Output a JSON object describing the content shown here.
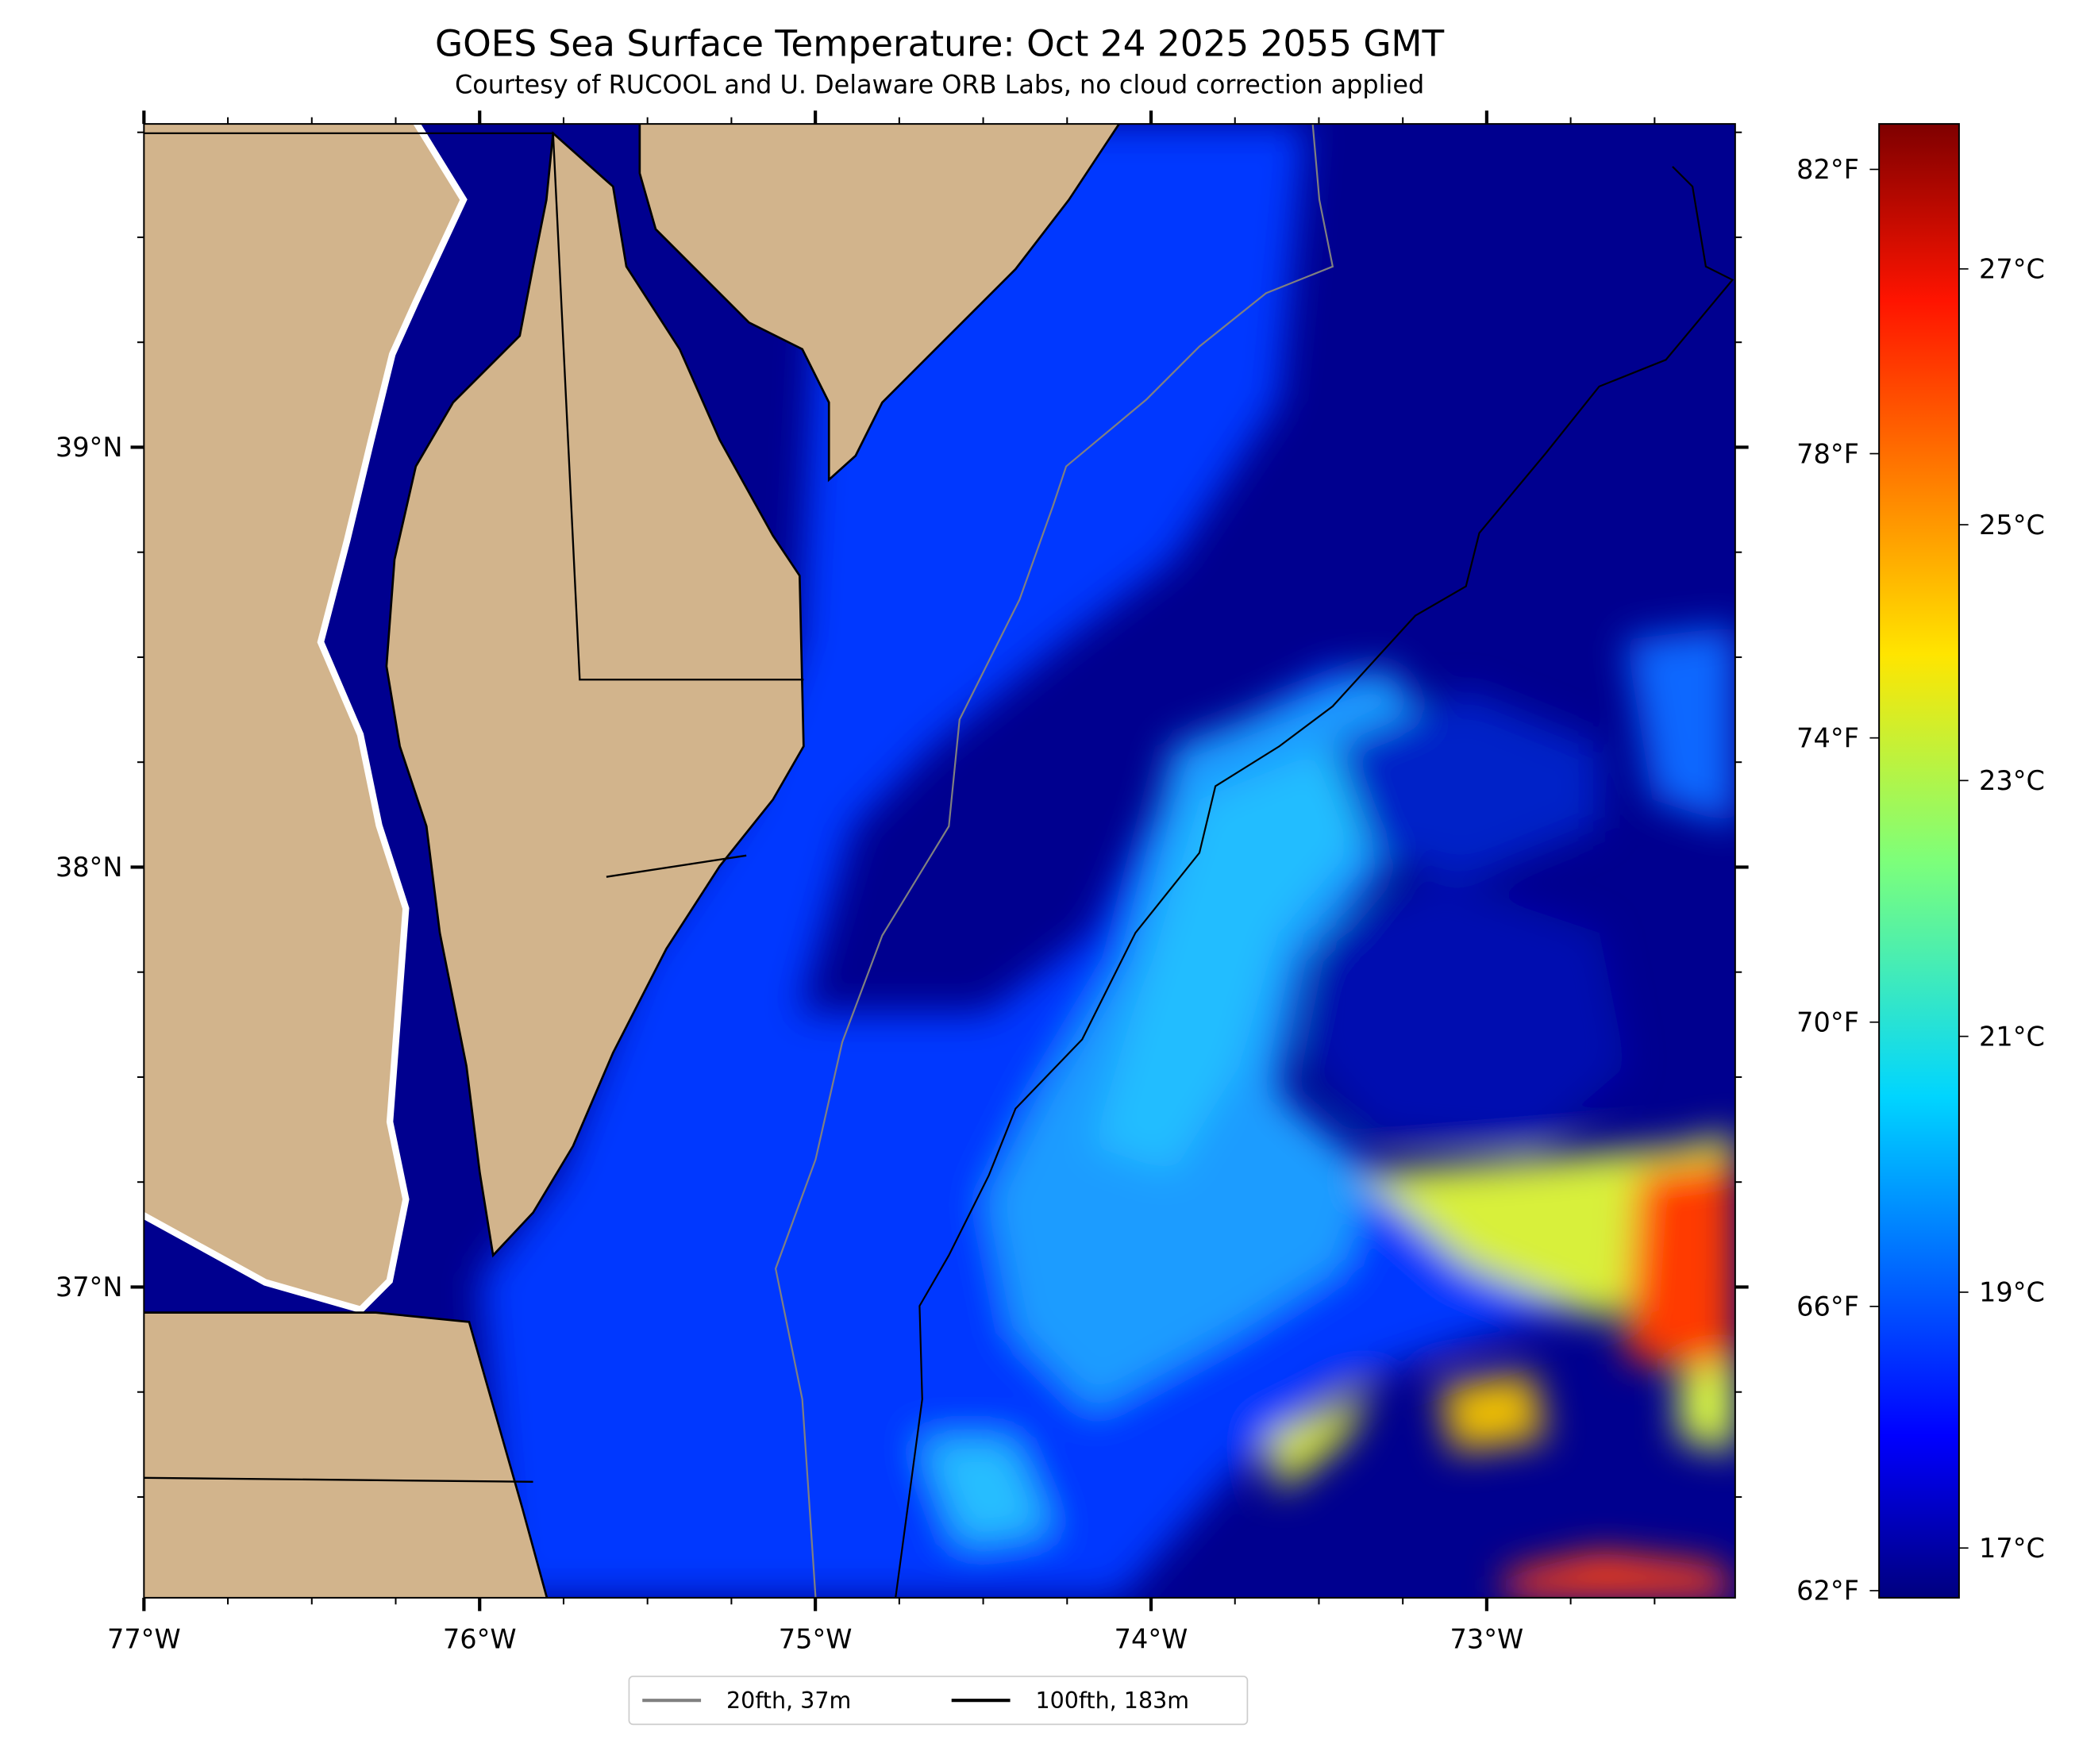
{
  "chart_data": {
    "type": "heatmap",
    "title": "GOES Sea Surface Temperature: Oct 24 2025 2055 GMT",
    "subtitle": "Courtesy of RUCOOL and U. Delaware ORB Labs, no cloud correction applied",
    "xlim": [
      -77.0,
      -72.26
    ],
    "ylim": [
      36.26,
      39.77
    ],
    "x_ticks": [
      {
        "value": -77,
        "label": "77°W"
      },
      {
        "value": -76,
        "label": "76°W"
      },
      {
        "value": -75,
        "label": "75°W"
      },
      {
        "value": -74,
        "label": "74°W"
      },
      {
        "value": -73,
        "label": "73°W"
      }
    ],
    "y_ticks": [
      {
        "value": 39,
        "label": "39°N"
      },
      {
        "value": 38,
        "label": "38°N"
      },
      {
        "value": 37,
        "label": "37°N"
      }
    ],
    "colorbar": {
      "colormap": "jet",
      "range_f": [
        61.9,
        82.64
      ],
      "f_ticks": [
        {
          "value": 62,
          "label": "62°F"
        },
        {
          "value": 66,
          "label": "66°F"
        },
        {
          "value": 70,
          "label": "70°F"
        },
        {
          "value": 74,
          "label": "74°F"
        },
        {
          "value": 78,
          "label": "78°F"
        },
        {
          "value": 82,
          "label": "82°F"
        }
      ],
      "c_ticks": [
        {
          "value": 17,
          "label": "17°C"
        },
        {
          "value": 19,
          "label": "19°C"
        },
        {
          "value": 21,
          "label": "21°C"
        },
        {
          "value": 23,
          "label": "23°C"
        },
        {
          "value": 25,
          "label": "25°C"
        },
        {
          "value": 27,
          "label": "27°C"
        }
      ]
    },
    "legend": {
      "placement": "bottom-center",
      "entries": [
        {
          "label": "20fth, 37m",
          "color": "#808080"
        },
        {
          "label": "100fth, 183m",
          "color": "#000000"
        }
      ]
    },
    "colors": {
      "land": "#d2b48c",
      "cold": "#00008f",
      "warm": "#ff2000"
    }
  }
}
